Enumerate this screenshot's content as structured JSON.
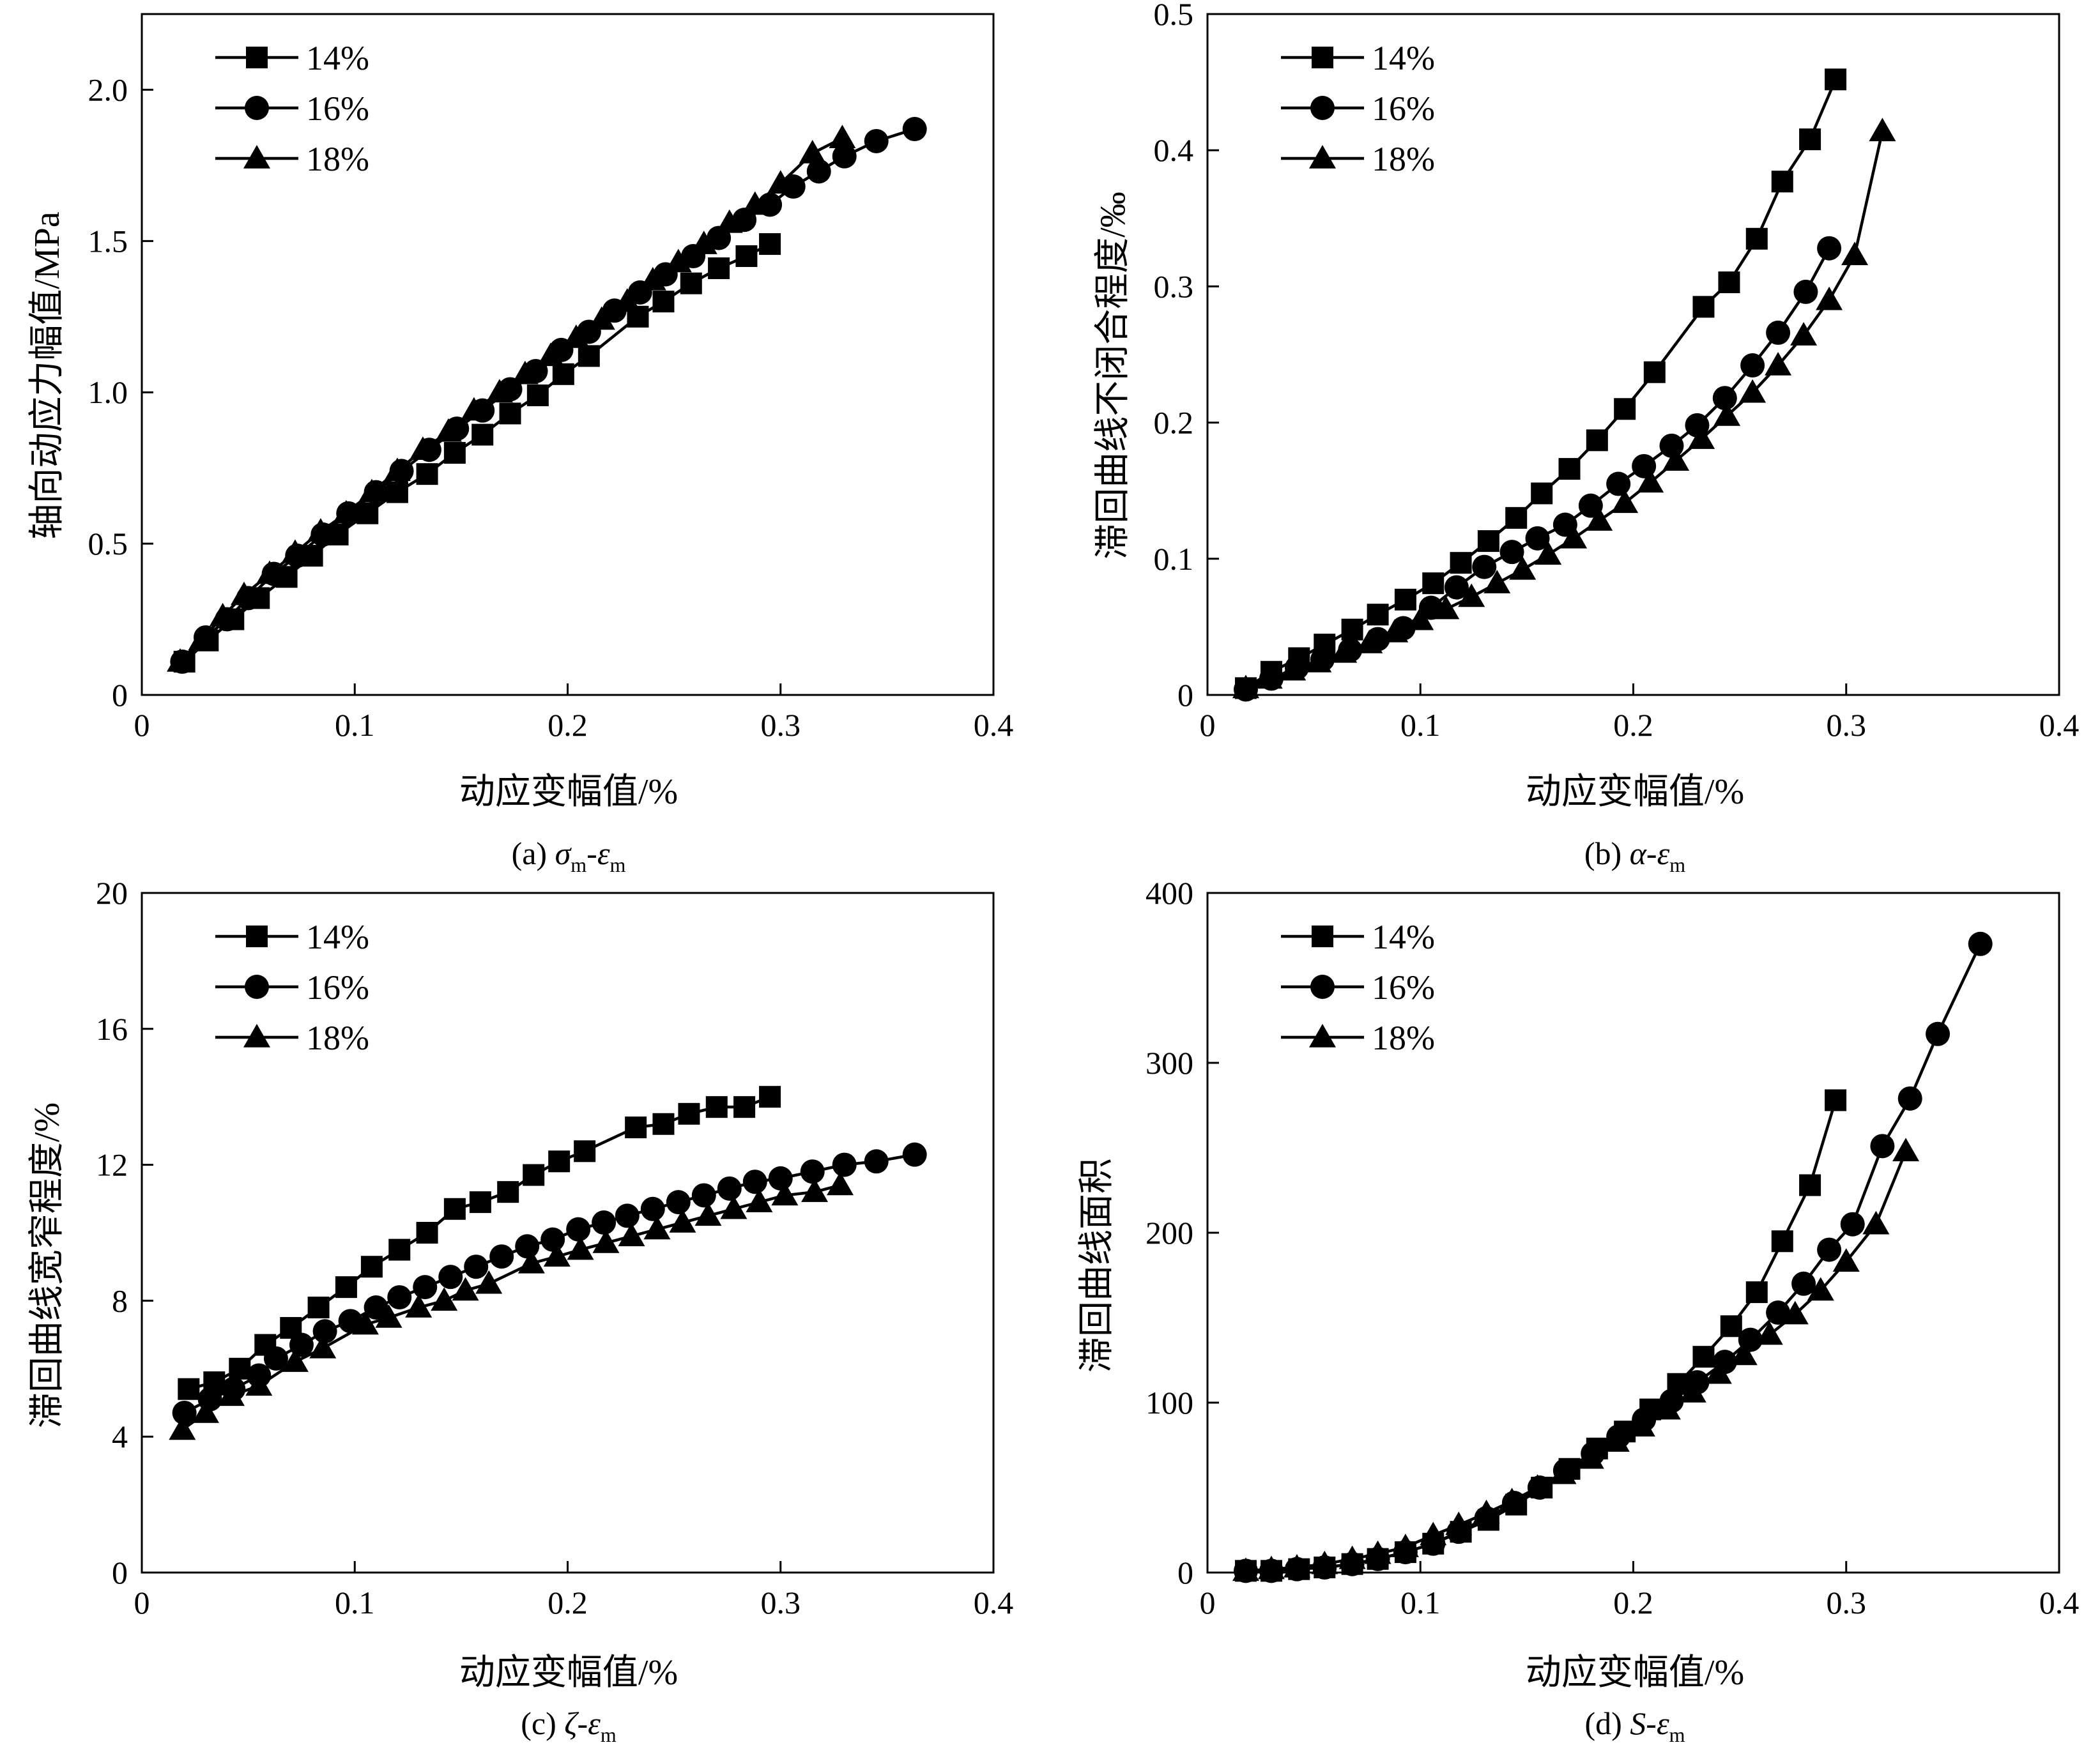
{
  "figure": {
    "panels": [
      {
        "id": "a",
        "caption": {
          "prefix": "(a) ",
          "v1": "σ",
          "s1": "m",
          "sep": "-",
          "v2": "ε",
          "s2": "m"
        },
        "xlabel": "动应变幅值/%",
        "ylabel": "轴向动应力幅值/MPa",
        "yticks": [
          "0",
          "0.5",
          "1.0",
          "1.5",
          "2.0"
        ],
        "xticks": [
          "0",
          "0.1",
          "0.2",
          "0.3",
          "0.4"
        ]
      },
      {
        "id": "b",
        "caption": {
          "prefix": "(b) ",
          "v1": "α",
          "s1": "",
          "sep": "-",
          "v2": "ε",
          "s2": "m"
        },
        "xlabel": "动应变幅值/%",
        "ylabel": "滞回曲线不闭合程度/‰",
        "yticks": [
          "0",
          "0.1",
          "0.2",
          "0.3",
          "0.4",
          "0.5"
        ],
        "xticks": [
          "0",
          "0.1",
          "0.2",
          "0.3",
          "0.4"
        ]
      },
      {
        "id": "c",
        "caption": {
          "prefix": "(c) ",
          "v1": "ζ",
          "s1": "",
          "sep": "-",
          "v2": "ε",
          "s2": "m"
        },
        "xlabel": "动应变幅值/%",
        "ylabel": "滞回曲线宽窄程度/%",
        "yticks": [
          "0",
          "4",
          "8",
          "12",
          "16",
          "20"
        ],
        "xticks": [
          "0",
          "0.1",
          "0.2",
          "0.3",
          "0.4"
        ]
      },
      {
        "id": "d",
        "caption": {
          "prefix": "(d) ",
          "v1": "S",
          "s1": "",
          "sep": "-",
          "v2": "ε",
          "s2": "m"
        },
        "xlabel": "动应变幅值/%",
        "ylabel": "滞回曲线面积",
        "yticks": [
          "0",
          "100",
          "200",
          "300",
          "400"
        ],
        "xticks": [
          "0",
          "0.1",
          "0.2",
          "0.3",
          "0.4"
        ]
      }
    ]
  },
  "chart_data": [
    {
      "type": "line",
      "title": "",
      "xlabel": "动应变幅值/%",
      "ylabel": "轴向动应力幅值/MPa",
      "xlim": [
        0,
        0.4
      ],
      "ylim": [
        0,
        2.25
      ],
      "legend": "top-left",
      "grid": false,
      "series": [
        {
          "name": "14%",
          "marker": "square",
          "x": [
            0.02,
            0.031,
            0.043,
            0.055,
            0.068,
            0.08,
            0.092,
            0.106,
            0.12,
            0.134,
            0.147,
            0.16,
            0.173,
            0.186,
            0.198,
            0.21,
            0.233,
            0.245,
            0.258,
            0.271,
            0.284,
            0.295
          ],
          "y": [
            0.11,
            0.18,
            0.25,
            0.32,
            0.39,
            0.46,
            0.53,
            0.6,
            0.67,
            0.73,
            0.8,
            0.86,
            0.93,
            0.99,
            1.06,
            1.12,
            1.25,
            1.3,
            1.36,
            1.41,
            1.45,
            1.49
          ]
        },
        {
          "name": "16%",
          "marker": "circle",
          "x": [
            0.019,
            0.03,
            0.04,
            0.05,
            0.062,
            0.073,
            0.085,
            0.097,
            0.11,
            0.122,
            0.135,
            0.148,
            0.16,
            0.173,
            0.185,
            0.197,
            0.21,
            0.222,
            0.234,
            0.246,
            0.259,
            0.271,
            0.283,
            0.295,
            0.306,
            0.318,
            0.33,
            0.345,
            0.363
          ],
          "y": [
            0.11,
            0.19,
            0.25,
            0.32,
            0.4,
            0.46,
            0.53,
            0.6,
            0.67,
            0.74,
            0.81,
            0.88,
            0.94,
            1.01,
            1.07,
            1.14,
            1.2,
            1.27,
            1.33,
            1.39,
            1.45,
            1.51,
            1.57,
            1.62,
            1.68,
            1.73,
            1.78,
            1.83,
            1.87
          ]
        },
        {
          "name": "18%",
          "marker": "triangle",
          "x": [
            0.018,
            0.028,
            0.038,
            0.048,
            0.06,
            0.072,
            0.084,
            0.096,
            0.108,
            0.12,
            0.132,
            0.144,
            0.156,
            0.168,
            0.18,
            0.192,
            0.204,
            0.216,
            0.228,
            0.24,
            0.252,
            0.264,
            0.276,
            0.288,
            0.3,
            0.315,
            0.329
          ],
          "y": [
            0.11,
            0.18,
            0.26,
            0.33,
            0.4,
            0.47,
            0.54,
            0.6,
            0.67,
            0.74,
            0.81,
            0.87,
            0.94,
            1.0,
            1.06,
            1.12,
            1.18,
            1.24,
            1.3,
            1.37,
            1.43,
            1.49,
            1.56,
            1.62,
            1.69,
            1.79,
            1.84
          ]
        }
      ]
    },
    {
      "type": "line",
      "title": "",
      "xlabel": "动应变幅值/%",
      "ylabel": "滞回曲线不闭合程度/‰",
      "xlim": [
        0,
        0.4
      ],
      "ylim": [
        0,
        0.5
      ],
      "legend": "top-left",
      "grid": false,
      "series": [
        {
          "name": "14%",
          "marker": "square",
          "x": [
            0.018,
            0.03,
            0.043,
            0.055,
            0.068,
            0.08,
            0.093,
            0.106,
            0.119,
            0.132,
            0.145,
            0.157,
            0.17,
            0.183,
            0.196,
            0.21,
            0.233,
            0.245,
            0.258,
            0.27,
            0.283,
            0.295
          ],
          "y": [
            0.005,
            0.017,
            0.027,
            0.037,
            0.048,
            0.059,
            0.07,
            0.082,
            0.097,
            0.113,
            0.13,
            0.148,
            0.166,
            0.187,
            0.21,
            0.237,
            0.285,
            0.303,
            0.335,
            0.377,
            0.408,
            0.452
          ]
        },
        {
          "name": "16%",
          "marker": "circle",
          "x": [
            0.018,
            0.03,
            0.042,
            0.054,
            0.067,
            0.08,
            0.092,
            0.105,
            0.117,
            0.13,
            0.143,
            0.155,
            0.168,
            0.18,
            0.193,
            0.205,
            0.218,
            0.23,
            0.243,
            0.256,
            0.268,
            0.281,
            0.292
          ],
          "y": [
            0.004,
            0.012,
            0.02,
            0.026,
            0.033,
            0.041,
            0.049,
            0.064,
            0.079,
            0.094,
            0.105,
            0.115,
            0.125,
            0.139,
            0.155,
            0.168,
            0.183,
            0.198,
            0.218,
            0.242,
            0.266,
            0.296,
            0.328
          ]
        },
        {
          "name": "18%",
          "marker": "triangle",
          "x": [
            0.018,
            0.029,
            0.04,
            0.052,
            0.064,
            0.076,
            0.088,
            0.1,
            0.112,
            0.124,
            0.136,
            0.148,
            0.16,
            0.172,
            0.184,
            0.196,
            0.208,
            0.22,
            0.232,
            0.244,
            0.256,
            0.268,
            0.28,
            0.292,
            0.304,
            0.317
          ],
          "y": [
            0.005,
            0.012,
            0.018,
            0.024,
            0.031,
            0.038,
            0.046,
            0.055,
            0.063,
            0.072,
            0.082,
            0.092,
            0.103,
            0.115,
            0.128,
            0.141,
            0.156,
            0.172,
            0.188,
            0.205,
            0.222,
            0.242,
            0.264,
            0.29,
            0.323,
            0.414
          ]
        }
      ]
    },
    {
      "type": "line",
      "title": "",
      "xlabel": "动应变幅值/%",
      "ylabel": "滞回曲线宽窄程度/%",
      "xlim": [
        0,
        0.4
      ],
      "ylim": [
        0,
        20
      ],
      "legend": "top-left",
      "grid": false,
      "series": [
        {
          "name": "14%",
          "marker": "square",
          "x": [
            0.022,
            0.034,
            0.046,
            0.058,
            0.07,
            0.083,
            0.096,
            0.108,
            0.121,
            0.134,
            0.147,
            0.159,
            0.172,
            0.184,
            0.196,
            0.208,
            0.232,
            0.245,
            0.257,
            0.27,
            0.283,
            0.295
          ],
          "y": [
            5.4,
            5.6,
            6.0,
            6.7,
            7.2,
            7.8,
            8.4,
            9.0,
            9.5,
            10.0,
            10.7,
            10.9,
            11.2,
            11.7,
            12.1,
            12.4,
            13.1,
            13.2,
            13.5,
            13.7,
            13.7,
            14.0
          ]
        },
        {
          "name": "16%",
          "marker": "circle",
          "x": [
            0.02,
            0.032,
            0.043,
            0.055,
            0.063,
            0.075,
            0.086,
            0.098,
            0.11,
            0.121,
            0.133,
            0.145,
            0.157,
            0.169,
            0.181,
            0.193,
            0.205,
            0.217,
            0.228,
            0.24,
            0.252,
            0.264,
            0.276,
            0.288,
            0.3,
            0.315,
            0.33,
            0.345,
            0.363
          ],
          "y": [
            4.7,
            5.1,
            5.4,
            5.8,
            6.3,
            6.7,
            7.1,
            7.4,
            7.8,
            8.1,
            8.4,
            8.7,
            9.0,
            9.3,
            9.6,
            9.8,
            10.1,
            10.3,
            10.5,
            10.7,
            10.9,
            11.1,
            11.3,
            11.5,
            11.6,
            11.8,
            12.0,
            12.1,
            12.3
          ]
        },
        {
          "name": "18%",
          "marker": "triangle",
          "x": [
            0.019,
            0.03,
            0.042,
            0.055,
            0.072,
            0.085,
            0.105,
            0.116,
            0.13,
            0.142,
            0.152,
            0.163,
            0.183,
            0.195,
            0.206,
            0.218,
            0.23,
            0.242,
            0.254,
            0.266,
            0.278,
            0.29,
            0.302,
            0.316,
            0.328
          ],
          "y": [
            4.2,
            4.7,
            5.2,
            5.5,
            6.2,
            6.6,
            7.3,
            7.5,
            7.8,
            8.0,
            8.3,
            8.5,
            9.1,
            9.3,
            9.5,
            9.7,
            9.9,
            10.1,
            10.3,
            10.5,
            10.7,
            10.9,
            11.1,
            11.2,
            11.4
          ]
        }
      ]
    },
    {
      "type": "line",
      "title": "",
      "xlabel": "动应变幅值/%",
      "ylabel": "滞回曲线面积",
      "xlim": [
        0,
        0.4
      ],
      "ylim": [
        0,
        400
      ],
      "legend": "top-left",
      "grid": false,
      "series": [
        {
          "name": "14%",
          "marker": "square",
          "x": [
            0.018,
            0.03,
            0.043,
            0.055,
            0.068,
            0.08,
            0.093,
            0.106,
            0.119,
            0.132,
            0.145,
            0.157,
            0.17,
            0.183,
            0.196,
            0.208,
            0.221,
            0.233,
            0.246,
            0.258,
            0.27,
            0.283,
            0.295
          ],
          "y": [
            1,
            1,
            2,
            3,
            5,
            8,
            12,
            17,
            24,
            31,
            40,
            50,
            61,
            73,
            83,
            96,
            111,
            127,
            145,
            165,
            195,
            228,
            278
          ]
        },
        {
          "name": "16%",
          "marker": "circle",
          "x": [
            0.018,
            0.03,
            0.042,
            0.055,
            0.068,
            0.08,
            0.093,
            0.106,
            0.118,
            0.131,
            0.144,
            0.156,
            0.168,
            0.181,
            0.193,
            0.205,
            0.218,
            0.23,
            0.243,
            0.255,
            0.268,
            0.28,
            0.292,
            0.303,
            0.317,
            0.33,
            0.343,
            0.363
          ],
          "y": [
            1,
            1,
            2,
            3,
            5,
            8,
            12,
            17,
            24,
            32,
            41,
            50,
            60,
            70,
            80,
            90,
            101,
            112,
            124,
            137,
            153,
            170,
            190,
            205,
            251,
            279,
            317,
            370
          ]
        },
        {
          "name": "18%",
          "marker": "triangle",
          "x": [
            0.018,
            0.03,
            0.042,
            0.055,
            0.068,
            0.08,
            0.093,
            0.106,
            0.118,
            0.131,
            0.143,
            0.155,
            0.167,
            0.18,
            0.192,
            0.204,
            0.216,
            0.228,
            0.24,
            0.252,
            0.264,
            0.276,
            0.288,
            0.3,
            0.314,
            0.328
          ],
          "y": [
            1,
            2,
            3,
            5,
            8,
            11,
            15,
            22,
            28,
            35,
            42,
            50,
            58,
            67,
            77,
            86,
            96,
            106,
            117,
            128,
            140,
            152,
            166,
            183,
            205,
            248
          ]
        }
      ]
    }
  ]
}
